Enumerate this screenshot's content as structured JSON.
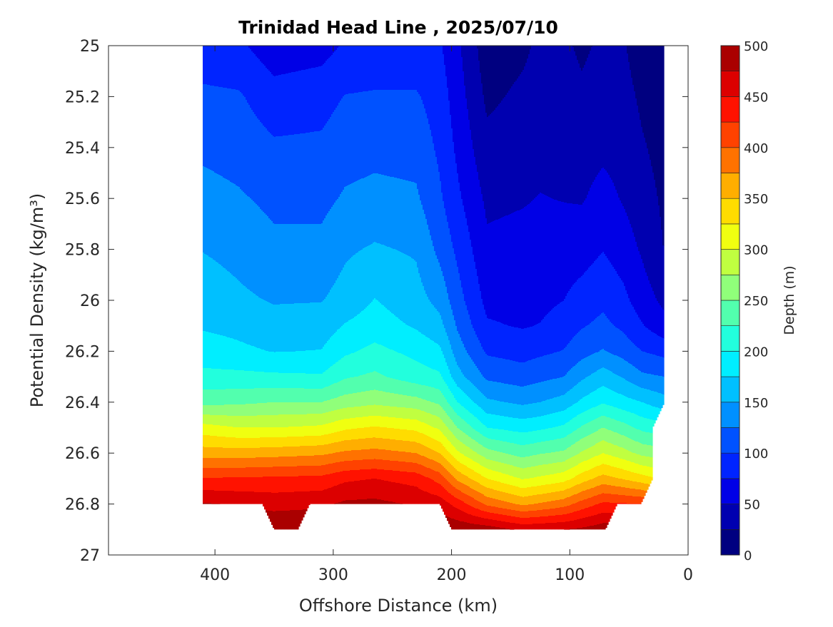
{
  "chart_data": {
    "type": "filled-contour",
    "title": "Trinidad Head Line , 2025/07/10",
    "xlabel": "Offshore Distance (km)",
    "ylabel": "Potential Density (kg/m³)",
    "colorbar_label": "Depth (m)",
    "xlim": [
      0,
      490
    ],
    "ylim": [
      25,
      27
    ],
    "x_reversed": true,
    "y_reversed": true,
    "xticks": [
      400,
      300,
      200,
      100,
      0
    ],
    "xtick_labels": [
      "400",
      "300",
      "200",
      "100",
      "0"
    ],
    "yticks": [
      25,
      25.2,
      25.4,
      25.6,
      25.8,
      26,
      26.2,
      26.4,
      26.6,
      26.8,
      27
    ],
    "ytick_labels": [
      "25",
      "25.2",
      "25.4",
      "25.6",
      "25.8",
      "26",
      "26.2",
      "26.4",
      "26.6",
      "26.8",
      "27"
    ],
    "colorbar_ticks": [
      0,
      50,
      100,
      150,
      200,
      250,
      300,
      350,
      400,
      450,
      500
    ],
    "colorbar_tick_labels": [
      "0",
      "50",
      "100",
      "150",
      "200",
      "250",
      "300",
      "350",
      "400",
      "450",
      "500"
    ],
    "clim": [
      0,
      500
    ],
    "level_step": 25,
    "level_colors": [
      "#000080",
      "#0000b0",
      "#0000e6",
      "#0024ff",
      "#0052ff",
      "#0090ff",
      "#00c0ff",
      "#00eeff",
      "#22ffdd",
      "#52ffae",
      "#90ff7a",
      "#c0ff40",
      "#f0ff10",
      "#ffdc00",
      "#ffae00",
      "#ff7200",
      "#ff4200",
      "#ff1200",
      "#dc0000",
      "#aa0000"
    ],
    "density_levels": [
      25.0,
      25.2,
      25.4,
      25.6,
      25.8,
      26.0,
      26.1,
      26.2,
      26.3,
      26.4,
      26.5,
      26.6,
      26.7,
      26.8,
      26.9
    ],
    "stations": [
      {
        "km": 410,
        "depth_m": [
          85,
          105,
          120,
          134,
          149,
          165,
          172,
          187,
          207,
          242,
          310,
          363,
          427,
          478,
          500
        ]
      },
      {
        "km": 380,
        "depth_m": [
          80,
          103,
          115,
          128,
          142,
          155,
          168,
          180,
          207,
          245,
          300,
          362,
          428,
          472,
          500
        ]
      },
      {
        "km": 350,
        "depth_m": [
          60,
          85,
          104,
          119,
          131,
          148,
          160,
          174,
          205,
          250,
          300,
          365,
          430,
          466,
          498
        ]
      },
      {
        "km": 310,
        "depth_m": [
          65,
          90,
          105,
          118,
          132,
          149,
          162,
          176,
          203,
          250,
          305,
          370,
          432,
          470,
          498
        ]
      },
      {
        "km": 290,
        "depth_m": [
          78,
          101,
          115,
          128,
          146,
          160,
          177,
          195,
          222,
          262,
          320,
          380,
          445,
          480,
          500
        ]
      },
      {
        "km": 265,
        "depth_m": [
          80,
          103,
          118,
          132,
          153,
          176,
          187,
          207,
          230,
          269,
          328,
          385,
          450,
          482,
          500
        ]
      },
      {
        "km": 230,
        "depth_m": [
          80,
          103,
          116,
          129,
          147,
          160,
          172,
          193,
          212,
          260,
          318,
          375,
          440,
          472,
          500
        ]
      },
      {
        "km": 210,
        "depth_m": [
          78,
          88,
          95,
          104,
          118,
          142,
          158,
          180,
          205,
          245,
          295,
          350,
          415,
          465,
          498
        ]
      },
      {
        "km": 195,
        "depth_m": [
          55,
          62,
          70,
          80,
          95,
          110,
          122,
          138,
          160,
          200,
          250,
          305,
          370,
          440,
          495
        ]
      },
      {
        "km": 170,
        "depth_m": [
          10,
          20,
          32,
          45,
          55,
          68,
          78,
          96,
          120,
          155,
          200,
          260,
          325,
          395,
          490
        ]
      },
      {
        "km": 140,
        "depth_m": [
          20,
          30,
          38,
          48,
          58,
          66,
          73,
          90,
          112,
          145,
          190,
          240,
          298,
          370,
          470
        ]
      },
      {
        "km": 125,
        "depth_m": [
          30,
          35,
          42,
          51,
          58,
          68,
          76,
          95,
          118,
          150,
          195,
          248,
          305,
          378,
          472
        ]
      },
      {
        "km": 105,
        "depth_m": [
          30,
          38,
          44,
          49,
          62,
          75,
          87,
          101,
          125,
          160,
          205,
          255,
          315,
          390,
          475
        ]
      },
      {
        "km": 90,
        "depth_m": [
          20,
          30,
          40,
          48,
          64,
          85,
          98,
          115,
          145,
          180,
          228,
          278,
          338,
          410,
          480
        ]
      },
      {
        "km": 72,
        "depth_m": [
          30,
          38,
          45,
          58,
          74,
          95,
          106,
          127,
          163,
          197,
          250,
          300,
          360,
          430,
          490
        ]
      },
      {
        "km": 55,
        "depth_m": [
          28,
          35,
          42,
          48,
          62,
          82,
          95,
          115,
          148,
          185,
          235,
          285,
          348,
          428,
          490
        ]
      },
      {
        "km": 39,
        "depth_m": [
          10,
          20,
          28,
          37,
          47,
          62,
          77,
          100,
          130,
          175,
          218,
          268,
          335,
          425,
          480
        ]
      },
      {
        "km": 20,
        "depth_m": [
          5,
          10,
          15,
          20,
          24,
          44,
          58,
          92,
          125,
          160,
          210,
          260,
          320,
          400,
          470
        ]
      }
    ],
    "max_density_boundary": [
      [
        20,
        26.4
      ],
      [
        30,
        26.5
      ],
      [
        30.01,
        26.7
      ],
      [
        40,
        26.8
      ],
      [
        60,
        26.8
      ],
      [
        70,
        26.9
      ],
      [
        200,
        26.9
      ],
      [
        210,
        26.8
      ],
      [
        320,
        26.8
      ],
      [
        330,
        26.9
      ],
      [
        350,
        26.9
      ],
      [
        360,
        26.8
      ],
      [
        410,
        26.8
      ]
    ],
    "grid": false,
    "colorbar_placement": "right"
  }
}
